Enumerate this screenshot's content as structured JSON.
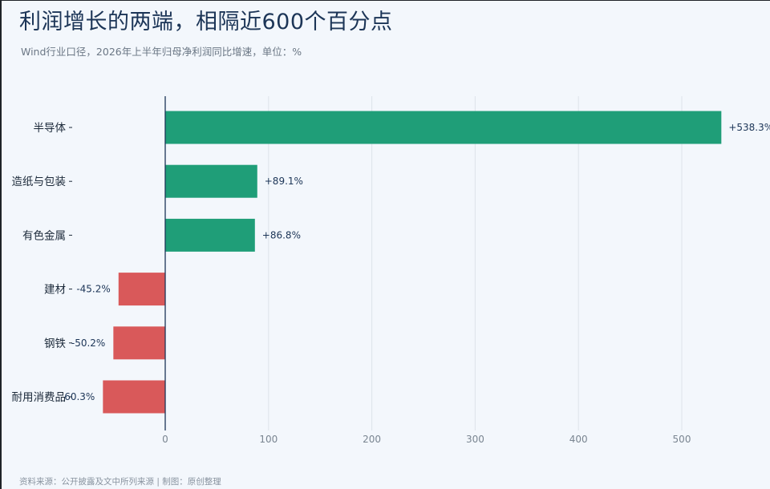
{
  "title": "利润增长的两端，相隔近600个百分点",
  "subtitle": "Wind行业口径，2026年上半年归母净利润同比增速，单位：%",
  "source": "资料来源：公开披露及文中所列来源 | 制图：原创整理",
  "colors": {
    "positive": "#1f9e78",
    "negative": "#d9595a",
    "axis": "#1c3557",
    "grid": "#dde3ea"
  },
  "chart_data": {
    "type": "bar",
    "orientation": "horizontal",
    "categories": [
      "半导体",
      "造纸与包装",
      "有色金属",
      "建材",
      "钢铁",
      "耐用消费品"
    ],
    "values": [
      538.3,
      89.1,
      86.8,
      -45.2,
      -50.2,
      -60.3
    ],
    "value_labels": [
      "+538.3%",
      "+89.1%",
      "+86.8%",
      "-45.2%",
      "-50.2%",
      "-60.3%"
    ],
    "xticks": [
      0,
      100,
      200,
      300,
      400,
      500
    ],
    "xlim": [
      -60.3,
      538.3
    ],
    "grid": true,
    "legend": "none"
  }
}
